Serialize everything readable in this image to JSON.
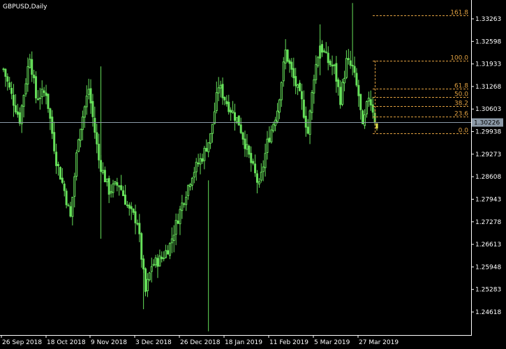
{
  "window": {
    "title": "GBPUSD,Daily"
  },
  "colors": {
    "background": "#000000",
    "candle": "#66e05a",
    "last_candle": "#e8e850",
    "axis": "#ffffff",
    "fib": "#e0a040",
    "price_line": "#8c9aa8",
    "price_tag_bg": "#8c9aa8"
  },
  "chart_data": {
    "type": "candlestick",
    "title": "GBPUSD,Daily",
    "current_price": "1.30226",
    "price_axis_ticks": [
      "1.33263",
      "1.32598",
      "1.31933",
      "1.31268",
      "1.30603",
      "1.29938",
      "1.29273",
      "1.28608",
      "1.27943",
      "1.27278",
      "1.26613",
      "1.25948",
      "1.25283",
      "1.24618"
    ],
    "ylim": [
      1.2428,
      1.3373
    ],
    "date_axis_ticks": [
      "26 Sep 2018",
      "18 Oct 2018",
      "9 Nov 2018",
      "3 Dec 2018",
      "26 Dec 2018",
      "18 Jan 2019",
      "11 Feb 2019",
      "5 Mar 2019",
      "27 Mar 2019"
    ],
    "fibonacci": {
      "levels": [
        {
          "label": "161.8",
          "price": 1.3336
        },
        {
          "label": "100.0",
          "price": 1.3203
        },
        {
          "label": "61.8",
          "price": 1.3121
        },
        {
          "label": "50.0",
          "price": 1.3096
        },
        {
          "label": "38.2",
          "price": 1.307
        },
        {
          "label": "23.6",
          "price": 1.3039
        },
        {
          "label": "0.0",
          "price": 1.2988
        }
      ]
    },
    "anchors": [
      [
        0,
        1.3178
      ],
      [
        4,
        1.31
      ],
      [
        8,
        1.303
      ],
      [
        13,
        1.322
      ],
      [
        16,
        1.3095
      ],
      [
        21,
        1.311
      ],
      [
        26,
        1.291
      ],
      [
        30,
        1.282
      ],
      [
        33,
        1.274
      ],
      [
        37,
        1.2985
      ],
      [
        42,
        1.312
      ],
      [
        47,
        1.291
      ],
      [
        52,
        1.282
      ],
      [
        57,
        1.284
      ],
      [
        62,
        1.276
      ],
      [
        66,
        1.273
      ],
      [
        70,
        1.252
      ],
      [
        73,
        1.26
      ],
      [
        78,
        1.262
      ],
      [
        82,
        1.266
      ],
      [
        88,
        1.278
      ],
      [
        93,
        1.287
      ],
      [
        98,
        1.292
      ],
      [
        102,
        1.298
      ],
      [
        106,
        1.313
      ],
      [
        110,
        1.308
      ],
      [
        116,
        1.302
      ],
      [
        121,
        1.292
      ],
      [
        126,
        1.283
      ],
      [
        130,
        1.296
      ],
      [
        135,
        1.306
      ],
      [
        139,
        1.323
      ],
      [
        143,
        1.315
      ],
      [
        147,
        1.308
      ],
      [
        150,
        1.299
      ],
      [
        153,
        1.316
      ],
      [
        156,
        1.325
      ],
      [
        160,
        1.32
      ],
      [
        163,
        1.318
      ],
      [
        166,
        1.309
      ],
      [
        169,
        1.32
      ],
      [
        172,
        1.318
      ],
      [
        175,
        1.31
      ],
      [
        177,
        1.3
      ],
      [
        180,
        1.31
      ],
      [
        182,
        1.306
      ],
      [
        184,
        1.3
      ]
    ],
    "bar_count": 185
  }
}
